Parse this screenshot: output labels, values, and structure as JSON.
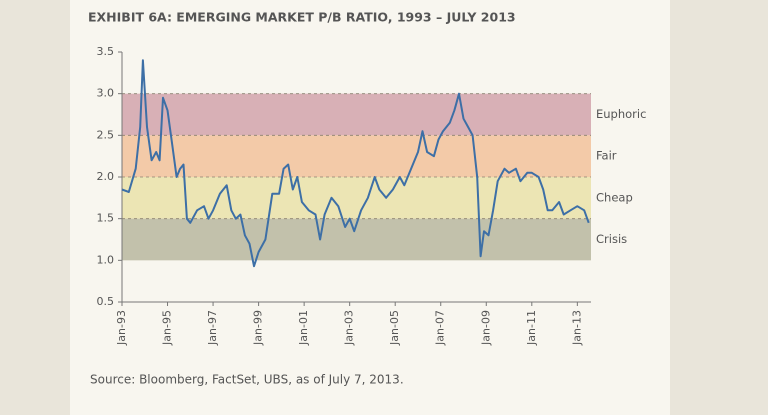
{
  "chart_data": {
    "type": "line",
    "title": "EXHIBIT 6A: EMERGING MARKET P/B RATIO, 1993 – JULY 2013",
    "note": "Source: Bloomberg, FactSet, UBS, as of July 7, 2013.",
    "x": [
      1993.0,
      1993.3,
      1993.6,
      1993.8,
      1993.92,
      1994.1,
      1994.3,
      1994.5,
      1994.65,
      1994.8,
      1995.0,
      1995.2,
      1995.4,
      1995.55,
      1995.7,
      1995.85,
      1996.0,
      1996.3,
      1996.6,
      1996.8,
      1997.0,
      1997.3,
      1997.6,
      1997.8,
      1998.0,
      1998.2,
      1998.4,
      1998.6,
      1998.8,
      1999.0,
      1999.3,
      1999.6,
      1999.9,
      2000.1,
      2000.3,
      2000.5,
      2000.7,
      2000.9,
      2001.2,
      2001.5,
      2001.7,
      2001.9,
      2002.2,
      2002.5,
      2002.8,
      2003.0,
      2003.2,
      2003.5,
      2003.8,
      2004.1,
      2004.3,
      2004.6,
      2004.9,
      2005.2,
      2005.4,
      2005.7,
      2006.0,
      2006.2,
      2006.4,
      2006.7,
      2006.9,
      2007.1,
      2007.4,
      2007.6,
      2007.8,
      2008.0,
      2008.2,
      2008.4,
      2008.6,
      2008.75,
      2008.9,
      2009.1,
      2009.3,
      2009.5,
      2009.8,
      2010.0,
      2010.3,
      2010.5,
      2010.8,
      2011.0,
      2011.3,
      2011.5,
      2011.7,
      2011.9,
      2012.2,
      2012.4,
      2012.7,
      2013.0,
      2013.3,
      2013.5
    ],
    "series": [
      {
        "name": "P/B ratio",
        "color": "#3d6fa6",
        "values": [
          1.85,
          1.82,
          2.1,
          2.6,
          3.4,
          2.6,
          2.2,
          2.3,
          2.2,
          2.95,
          2.8,
          2.4,
          2.0,
          2.1,
          2.15,
          1.5,
          1.45,
          1.6,
          1.65,
          1.5,
          1.6,
          1.8,
          1.9,
          1.6,
          1.5,
          1.55,
          1.3,
          1.2,
          0.93,
          1.1,
          1.25,
          1.8,
          1.8,
          2.1,
          2.15,
          1.85,
          2.0,
          1.7,
          1.6,
          1.55,
          1.25,
          1.55,
          1.75,
          1.65,
          1.4,
          1.5,
          1.35,
          1.6,
          1.75,
          2.0,
          1.85,
          1.75,
          1.85,
          2.0,
          1.9,
          2.1,
          2.3,
          2.55,
          2.3,
          2.25,
          2.45,
          2.55,
          2.65,
          2.8,
          3.0,
          2.7,
          2.6,
          2.5,
          2.0,
          1.05,
          1.35,
          1.3,
          1.6,
          1.95,
          2.1,
          2.05,
          2.1,
          1.95,
          2.05,
          2.05,
          2.0,
          1.85,
          1.6,
          1.6,
          1.7,
          1.55,
          1.6,
          1.65,
          1.6,
          1.45
        ]
      }
    ],
    "bands": [
      {
        "label": "Euphoric",
        "range": [
          2.5,
          3.0
        ],
        "color": "#d8b0b6"
      },
      {
        "label": "Fair",
        "range": [
          2.0,
          2.5
        ],
        "color": "#f3caa8"
      },
      {
        "label": "Cheap",
        "range": [
          1.5,
          2.0
        ],
        "color": "#ece5b4"
      },
      {
        "label": "Crisis",
        "range": [
          1.0,
          1.5
        ],
        "color": "#c2c1ab"
      }
    ],
    "xlim": [
      1993,
      2013.6
    ],
    "xticks": [
      {
        "value": 1993,
        "label": "Jan-93"
      },
      {
        "value": 1995,
        "label": "Jan-95"
      },
      {
        "value": 1997,
        "label": "Jan-97"
      },
      {
        "value": 1999,
        "label": "Jan-99"
      },
      {
        "value": 2001,
        "label": "Jan-01"
      },
      {
        "value": 2003,
        "label": "Jan-03"
      },
      {
        "value": 2005,
        "label": "Jan-05"
      },
      {
        "value": 2007,
        "label": "Jan-07"
      },
      {
        "value": 2009,
        "label": "Jan-09"
      },
      {
        "value": 2011,
        "label": "Jan-11"
      },
      {
        "value": 2013,
        "label": "Jan-13"
      }
    ],
    "ylim": [
      0.5,
      3.5
    ],
    "yticks": [
      {
        "value": 3.5,
        "label": "3.5"
      },
      {
        "value": 3,
        "label": "3.0"
      },
      {
        "value": 2.5,
        "label": "2.5"
      },
      {
        "value": 2,
        "label": "2.0"
      },
      {
        "value": 1.5,
        "label": "1.5"
      },
      {
        "value": 1,
        "label": "1.0"
      },
      {
        "value": 0.5,
        "label": "0.5"
      }
    ]
  }
}
